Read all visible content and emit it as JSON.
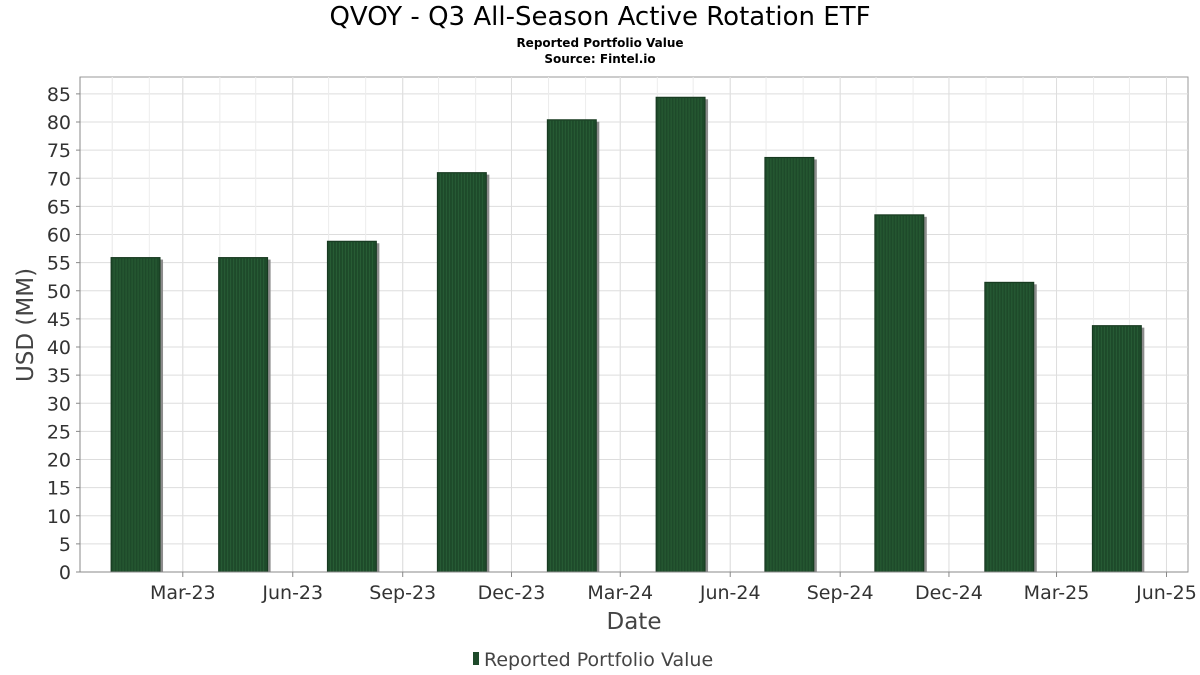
{
  "title": "QVOY - Q3 All-Season Active Rotation ETF",
  "subtitle_1": "Reported Portfolio Value",
  "subtitle_2": "Source: Fintel.io",
  "chart_data": {
    "type": "bar",
    "title": "QVOY - Q3 All-Season Active Rotation ETF",
    "xlabel": "Date",
    "ylabel": "USD (MM)",
    "ylim": [
      0,
      88
    ],
    "y_ticks": [
      0,
      5,
      10,
      15,
      20,
      25,
      30,
      35,
      40,
      45,
      50,
      55,
      60,
      65,
      70,
      75,
      80,
      85
    ],
    "x_ticks": [
      "Mar-23",
      "Jun-23",
      "Sep-23",
      "Dec-23",
      "Mar-24",
      "Jun-24",
      "Sep-24",
      "Dec-24",
      "Mar-25",
      "Jun-25"
    ],
    "x_range": [
      "2022-12-05",
      "2025-06-19"
    ],
    "categories": [
      "2022-12-31",
      "2023-03-31",
      "2023-06-30",
      "2023-09-30",
      "2023-12-31",
      "2024-03-31",
      "2024-06-30",
      "2024-09-30",
      "2024-12-31",
      "2025-03-31"
    ],
    "series": [
      {
        "name": "Reported Portfolio Value",
        "values": [
          55.9,
          55.9,
          58.8,
          71.0,
          80.4,
          84.4,
          73.7,
          63.5,
          51.5,
          43.8
        ]
      }
    ],
    "grid": true,
    "legend_position": "bottom-center",
    "colors": {
      "bar": "#1e4a2a",
      "bar_shadow": "#8c8c8c",
      "grid": "#dddddd"
    }
  }
}
